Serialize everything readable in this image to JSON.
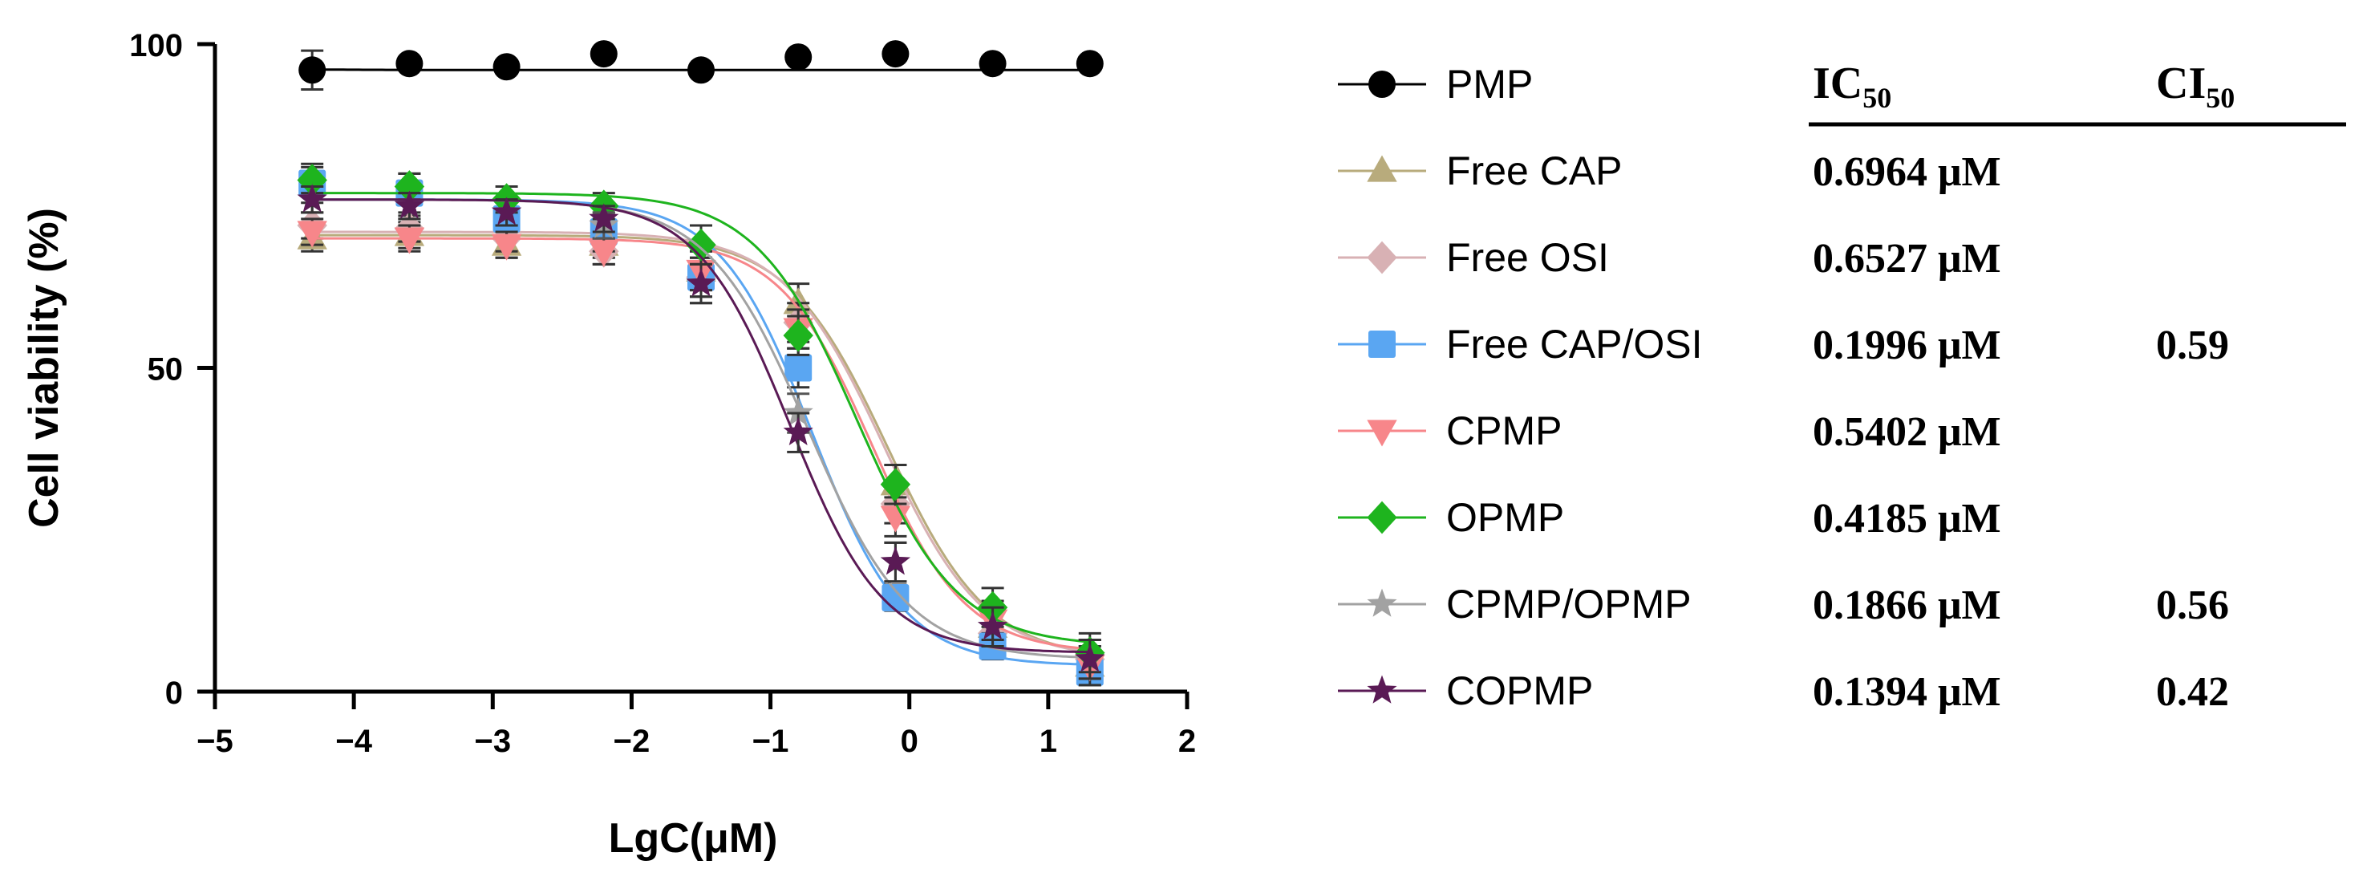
{
  "chart_data": {
    "type": "line",
    "ylabel": "Cell viability (%)",
    "xlabel": "LgC(μM)",
    "xlim": [
      -5,
      2
    ],
    "ylim": [
      0,
      100
    ],
    "x_ticks": [
      -5,
      -4,
      -3,
      -2,
      -1,
      0,
      1,
      2
    ],
    "x_tick_labels": [
      "−5",
      "−4",
      "−3",
      "−2",
      "−1",
      "0",
      "1",
      "2"
    ],
    "y_ticks": [
      0,
      50,
      100
    ],
    "y_tick_labels": [
      "0",
      "50",
      "100"
    ],
    "x": [
      -4.3,
      -3.6,
      -2.9,
      -2.2,
      -1.5,
      -0.8,
      -0.1,
      0.6,
      1.3
    ],
    "series": [
      {
        "name": "PMP",
        "color": "#000000",
        "marker": "circle",
        "values": [
          96,
          97,
          96.5,
          98.5,
          96,
          98,
          98.5,
          97,
          97
        ],
        "errors": [
          3,
          1,
          1,
          1,
          1,
          1,
          1,
          1,
          1
        ],
        "fit": {
          "top": 97.5,
          "bottom": 96,
          "logic50": -5.5,
          "hill": 1
        }
      },
      {
        "name": "Free CAP",
        "color": "#b8ab7c",
        "marker": "triangle-up",
        "values": [
          70,
          70.5,
          69,
          69,
          65,
          60,
          32,
          10,
          4
        ],
        "errors": [
          2,
          2,
          2,
          2,
          3,
          3,
          3,
          3,
          3
        ],
        "fit": {
          "top": 70.5,
          "bottom": 5,
          "logic50": -0.157,
          "hill": 1.2
        },
        "ic50": "0.6964 μM",
        "ci50": ""
      },
      {
        "name": "Free OSI",
        "color": "#d8b1b4",
        "marker": "diamond",
        "values": [
          72,
          71.5,
          70,
          68,
          64,
          57,
          29,
          9,
          5
        ],
        "errors": [
          2,
          2,
          2,
          2,
          3,
          3,
          3,
          3,
          3
        ],
        "fit": {
          "top": 71,
          "bottom": 5,
          "logic50": -0.185,
          "hill": 1.2
        },
        "ic50": "0.6527 μM",
        "ci50": ""
      },
      {
        "name": "Free CAP/OSI",
        "color": "#5aa6f2",
        "marker": "square",
        "values": [
          78.5,
          77,
          73,
          71,
          64,
          50,
          14.5,
          7,
          3
        ],
        "errors": [
          3,
          3,
          3,
          3,
          3,
          3,
          2,
          2,
          2
        ],
        "fit": {
          "top": 76,
          "bottom": 4,
          "logic50": -0.7,
          "hill": 1.3
        },
        "ic50": "0.1996 μM",
        "ci50": "0.59"
      },
      {
        "name": "CPMP",
        "color": "#f7868a",
        "marker": "triangle-down",
        "values": [
          71,
          70,
          69,
          68,
          65,
          56,
          27,
          11,
          4
        ],
        "errors": [
          2,
          2,
          2,
          2,
          3,
          3,
          3,
          3,
          3
        ],
        "fit": {
          "top": 70,
          "bottom": 6,
          "logic50": -0.267,
          "hill": 1.3
        },
        "ic50": "0.5402 μM",
        "ci50": ""
      },
      {
        "name": "OPMP",
        "color": "#1eb41e",
        "marker": "diamond",
        "values": [
          79,
          78,
          76,
          75,
          69,
          55,
          32,
          13,
          6
        ],
        "errors": [
          2,
          2,
          2,
          2,
          3,
          3,
          3,
          3,
          3
        ],
        "fit": {
          "top": 77,
          "bottom": 7,
          "logic50": -0.378,
          "hill": 1.2
        },
        "ic50": "0.4185 μM",
        "ci50": ""
      },
      {
        "name": "CPMP/OPMP",
        "color": "#a2a2a2",
        "marker": "star",
        "values": [
          76,
          75,
          74,
          72,
          63,
          43,
          20,
          10,
          5
        ],
        "errors": [
          2,
          2,
          2,
          2,
          3,
          3,
          3,
          3,
          3
        ],
        "fit": {
          "top": 76,
          "bottom": 5,
          "logic50": -0.729,
          "hill": 1.2
        },
        "ic50": "0.1866 μM",
        "ci50": "0.56"
      },
      {
        "name": "COPMP",
        "color": "#5a1a55",
        "marker": "star",
        "values": [
          76,
          75,
          74,
          73,
          63,
          40,
          20,
          10,
          5
        ],
        "errors": [
          2,
          2,
          2,
          2,
          3,
          3,
          3,
          3,
          3
        ],
        "fit": {
          "top": 76,
          "bottom": 6,
          "logic50": -0.856,
          "hill": 1.3
        },
        "ic50": "0.1394 μM",
        "ci50": "0.42"
      }
    ],
    "table": {
      "col1_header": "IC",
      "col1_sub": "50",
      "col2_header": "CI",
      "col2_sub": "50"
    }
  }
}
